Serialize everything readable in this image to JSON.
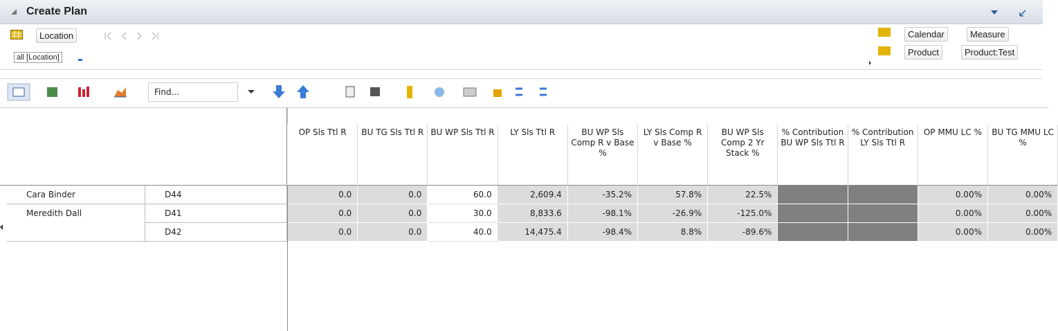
{
  "header": {
    "title": "Create Plan"
  },
  "location": {
    "dimension": "Location",
    "selection": "all [Location]"
  },
  "side_dimensions": [
    "Calendar",
    "Measure",
    "Product",
    "Product:Test"
  ],
  "toolbar": {
    "find": "Find..."
  },
  "table": {
    "columns": [
      "OP Sls Ttl R",
      "BU TG Sls Ttl R",
      "BU WP Sls Ttl R",
      "LY Sls Ttl R",
      "BU WP Sls Comp R v Base %",
      "LY Sls Comp R v Base %",
      "BU WP Sls Comp 2 Yr Stack %",
      "% Contribution BU WP Sls Ttl R",
      "% Contribution LY Sls Ttl R",
      "OP MMU LC %",
      "BU TG MMU LC %"
    ],
    "rows": [
      {
        "name": "Cara Binder",
        "code": "D44",
        "cells": [
          "0.0",
          "0.0",
          "60.0",
          "2,609.4",
          "-35.2%",
          "57.8%",
          "22.5%",
          null,
          null,
          "0.00%",
          "0.00%"
        ]
      },
      {
        "name": "Meredith Dall",
        "code": "D41",
        "cells": [
          "0.0",
          "0.0",
          "30.0",
          "8,833.6",
          "-98.1%",
          "-26.9%",
          "-125.0%",
          null,
          null,
          "0.00%",
          "0.00%"
        ]
      },
      {
        "code": "D42",
        "cells": [
          "0.0",
          "0.0",
          "40.0",
          "14,475.4",
          "-98.4%",
          "8.8%",
          "-89.6%",
          null,
          null,
          "0.00%",
          "0.00%"
        ]
      }
    ]
  }
}
